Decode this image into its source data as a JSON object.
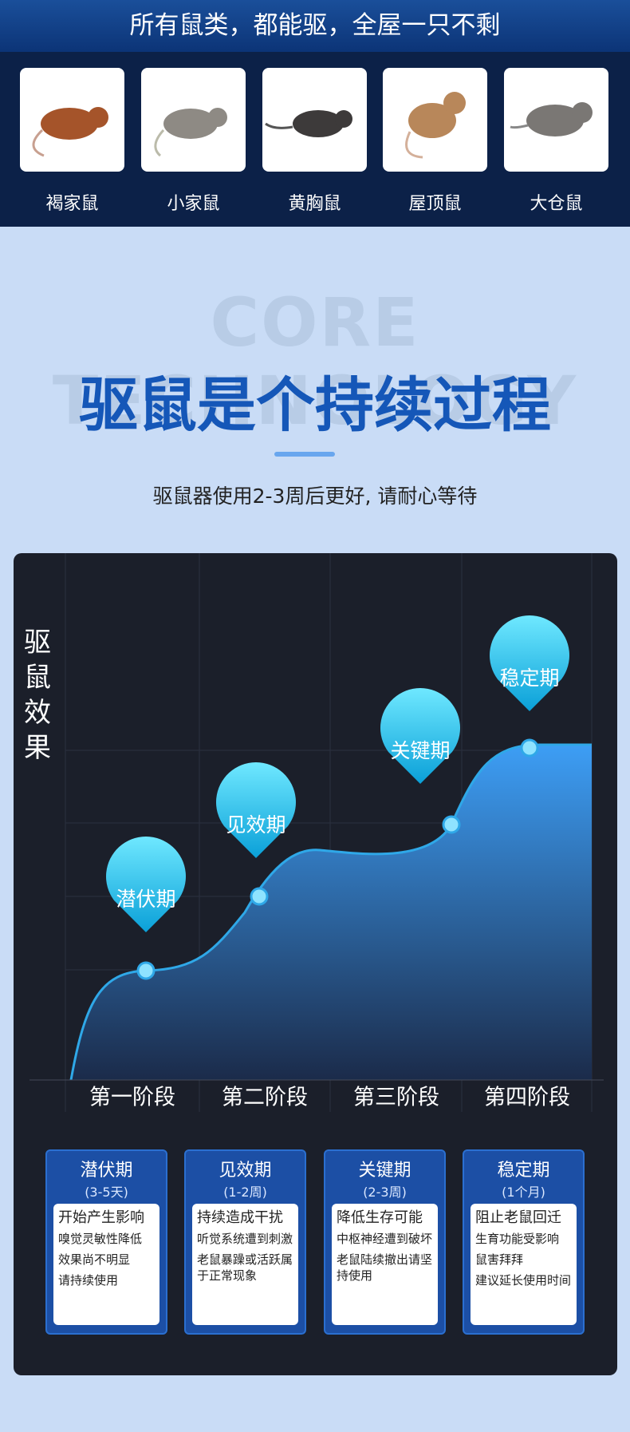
{
  "header": {
    "title": "所有鼠类，都能驱，全屋一只不剩"
  },
  "rats": [
    "褐家鼠",
    "小家鼠",
    "黄胸鼠",
    "屋顶鼠",
    "大仓鼠"
  ],
  "section": {
    "watermark": "CORE TECHNOLOGY",
    "title": "驱鼠是个持续过程",
    "subtitle": "驱鼠器使用2-3周后更好, 请耐心等待"
  },
  "panel": {
    "y_label": "驱鼠效果",
    "stages": [
      "第一阶段",
      "第二阶段",
      "第三阶段",
      "第四阶段"
    ],
    "cards": [
      {
        "title": "潜伏期",
        "duration": "(3-5天)",
        "lead": "开始产生影响",
        "lines": [
          "嗅觉灵敏性降低",
          "效果尚不明显",
          "请持续使用"
        ]
      },
      {
        "title": "见效期",
        "duration": "(1-2周)",
        "lead": "持续造成干扰",
        "lines": [
          "听觉系统遭到刺激",
          "老鼠暴躁或活跃属于正常现象"
        ]
      },
      {
        "title": "关键期",
        "duration": "(2-3周)",
        "lead": "降低生存可能",
        "lines": [
          "中枢神经遭到破坏",
          "老鼠陆续撤出请坚持使用"
        ]
      },
      {
        "title": "稳定期",
        "duration": "(1个月)",
        "lead": "阻止老鼠回迁",
        "lines": [
          "生育功能受影响",
          "鼠害拜拜",
          "建议延长使用时间"
        ]
      }
    ]
  }
}
